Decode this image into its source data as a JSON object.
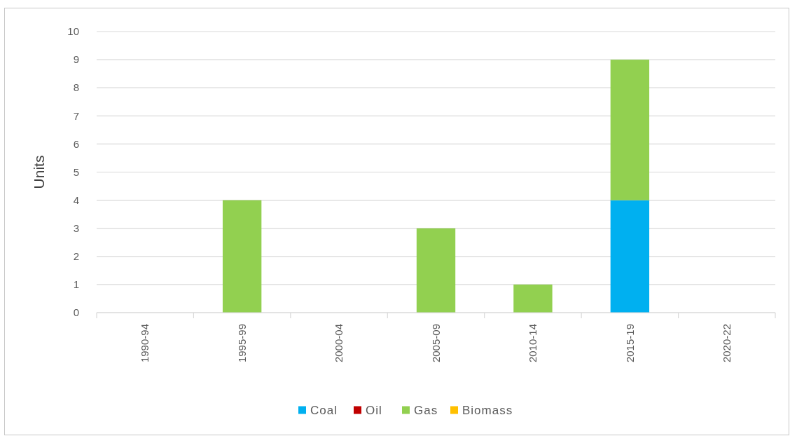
{
  "chart_data": {
    "type": "bar",
    "ylabel": "Units",
    "stacked": true,
    "categories": [
      "1990-94",
      "1995-99",
      "2000-04",
      "2005-09",
      "2010-14",
      "2015-19",
      "2020-22"
    ],
    "series": [
      {
        "name": "Coal",
        "color": "#00b0f0",
        "values": [
          0,
          0,
          0,
          0,
          0,
          4,
          0
        ]
      },
      {
        "name": "Oil",
        "color": "#c00000",
        "values": [
          0,
          0,
          0,
          0,
          0,
          0,
          0
        ]
      },
      {
        "name": "Gas",
        "color": "#92d050",
        "values": [
          0,
          4,
          0,
          3,
          1,
          5,
          0
        ]
      },
      {
        "name": "Biomass",
        "color": "#ffc000",
        "values": [
          0,
          0,
          0,
          0,
          0,
          0,
          0
        ]
      }
    ],
    "ylim": [
      0,
      10
    ],
    "yticks": [
      0,
      1,
      2,
      3,
      4,
      5,
      6,
      7,
      8,
      9,
      10
    ],
    "grid": "y",
    "legend": "bottom"
  }
}
